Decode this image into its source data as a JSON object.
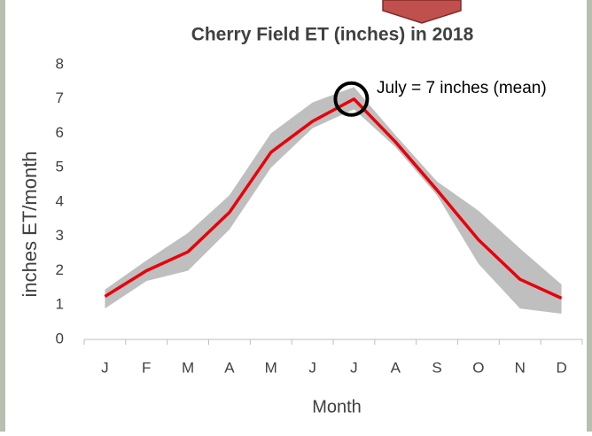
{
  "chart_data": {
    "type": "line",
    "title": "Cherry Field ET (inches) in 2018",
    "x_label": "Month",
    "y_label": "inches ET/month",
    "annotation": "July = 7 inches (mean)",
    "categories": [
      "J",
      "F",
      "M",
      "A",
      "M",
      "J",
      "J",
      "A",
      "S",
      "O",
      "N",
      "D"
    ],
    "series": [
      {
        "color": "#e8000b",
        "values": [
          1.25,
          2.0,
          2.55,
          3.7,
          5.45,
          6.35,
          7.0,
          5.75,
          4.35,
          2.9,
          1.75,
          1.2
        ]
      }
    ],
    "band": {
      "color": "#bfbfbf",
      "upper": [
        1.45,
        2.3,
        3.1,
        4.2,
        6.0,
        6.9,
        7.35,
        5.95,
        4.6,
        3.75,
        2.65,
        1.6
      ],
      "lower": [
        0.9,
        1.7,
        2.0,
        3.2,
        5.0,
        6.15,
        6.7,
        5.6,
        4.2,
        2.2,
        0.9,
        0.75
      ]
    },
    "ylim": [
      0,
      8
    ],
    "yticks": [
      0,
      1,
      2,
      3,
      4,
      5,
      6,
      7,
      8
    ]
  }
}
